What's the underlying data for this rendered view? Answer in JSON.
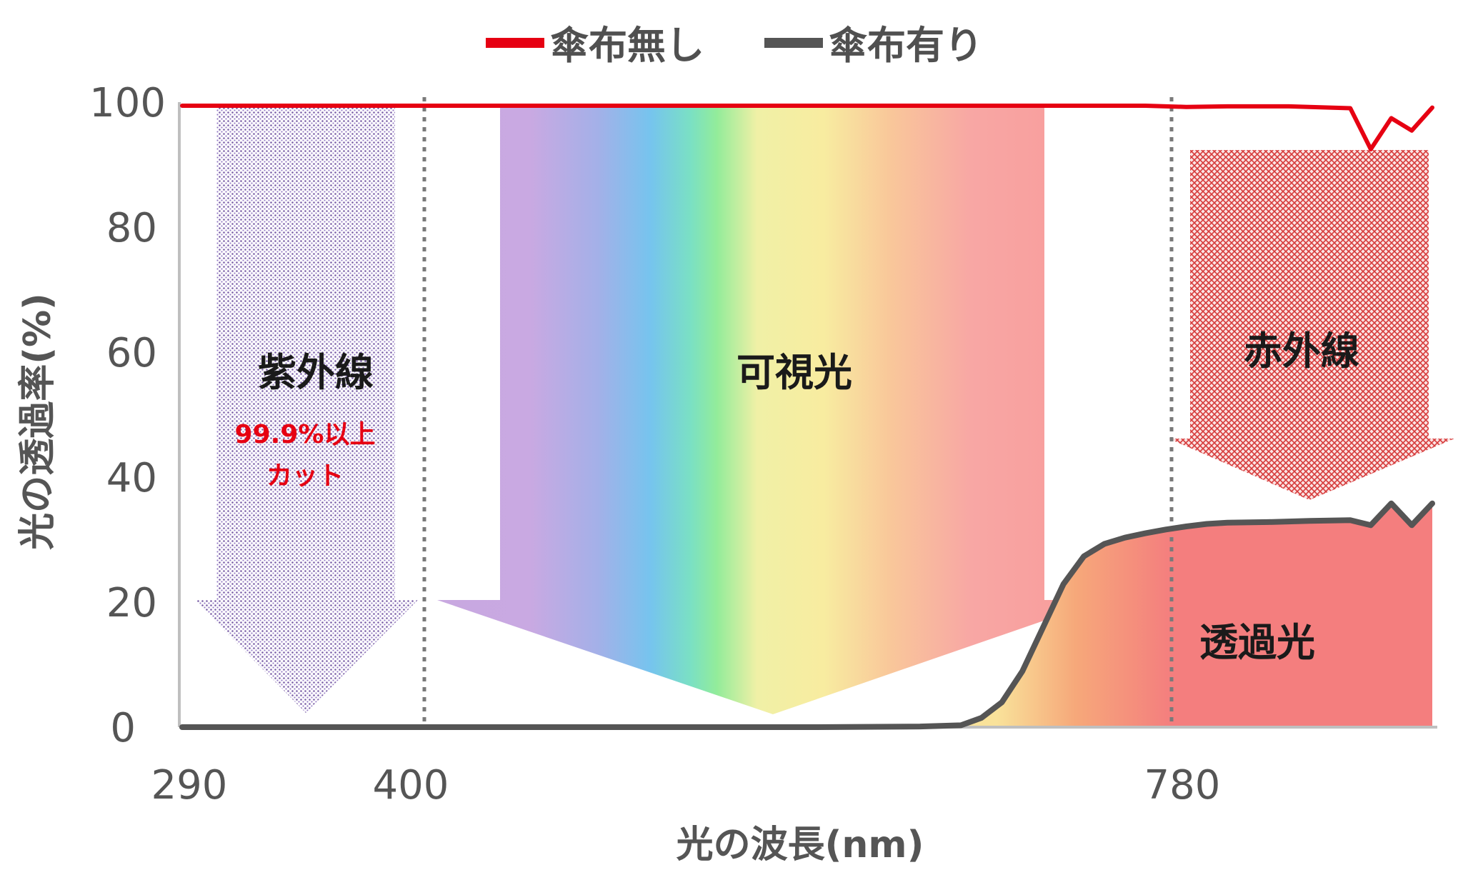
{
  "chart_data": {
    "type": "line",
    "title": "",
    "xlabel": "光の波長(nm)",
    "ylabel": "光の透過率(%)",
    "xlim": [
      290,
      900
    ],
    "ylim": [
      0,
      100
    ],
    "x_ticks": [
      "290",
      "400",
      "780"
    ],
    "y_ticks": [
      "0",
      "20",
      "40",
      "60",
      "80",
      "100"
    ],
    "legend_position": "top-center",
    "grid": false,
    "series": [
      {
        "name": "傘布無し",
        "color": "#e60012",
        "x": [
          290,
          350,
          400,
          500,
          600,
          700,
          760,
          780,
          800,
          830,
          860,
          870,
          880,
          890,
          900
        ],
        "y": [
          100,
          100,
          100,
          100,
          100,
          100,
          100,
          99.8,
          99.9,
          99.9,
          99.6,
          93,
          98,
          96,
          99.7
        ]
      },
      {
        "name": "傘布有り",
        "color": "#555555",
        "x": [
          290,
          400,
          500,
          600,
          650,
          670,
          680,
          690,
          700,
          710,
          720,
          730,
          740,
          750,
          760,
          770,
          780,
          790,
          800,
          820,
          840,
          860,
          870,
          880,
          890,
          900
        ],
        "y": [
          0,
          0,
          0,
          0,
          0.1,
          0.3,
          1.5,
          4,
          9,
          16,
          23,
          27.5,
          29.5,
          30.5,
          31.2,
          31.8,
          32.3,
          32.7,
          32.9,
          33,
          33.2,
          33.3,
          32.5,
          36,
          32.5,
          36
        ]
      }
    ],
    "regions": [
      {
        "name": "紫外線",
        "x_range": [
          290,
          400
        ],
        "note": [
          "99.9%以上",
          "カット"
        ]
      },
      {
        "name": "可視光",
        "x_range": [
          400,
          780
        ]
      },
      {
        "name": "赤外線",
        "x_range": [
          780,
          900
        ]
      }
    ],
    "annotation": {
      "label": "透過光"
    }
  },
  "colors": {
    "uv_accent": "#e60012",
    "uv_dots": "#5a3c8c",
    "ir_pattern": "#d12e2e",
    "transmitted_fill": "#f08080",
    "axis": "#bfbfbf"
  }
}
